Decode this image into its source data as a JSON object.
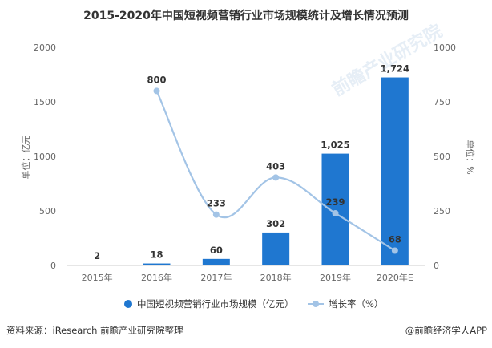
{
  "chart_data": {
    "type": "bar+line",
    "title": "2015-2020年中国短视频营销行业市场规模统计及增长情况预测",
    "categories": [
      "2015年",
      "2016年",
      "2017年",
      "2018年",
      "2019年",
      "2020年E"
    ],
    "series": [
      {
        "name": "中国短视频营销行业市场规模（亿元）",
        "type": "bar",
        "axis": "left",
        "color": "#1f77d0",
        "values": [
          2,
          18,
          60,
          302,
          1025,
          1724
        ],
        "labels": [
          "2",
          "18",
          "60",
          "302",
          "1,025",
          "1,724"
        ]
      },
      {
        "name": "增长率（%）",
        "type": "line",
        "axis": "right",
        "color": "#a3c4e6",
        "values": [
          null,
          800,
          233,
          403,
          239,
          68
        ],
        "labels": [
          "",
          "800",
          "233",
          "403",
          "239",
          "68"
        ]
      }
    ],
    "y_left": {
      "label": "单位：亿元",
      "range": [
        0,
        2000
      ],
      "ticks": [
        "0",
        "500",
        "1000",
        "1500",
        "2000"
      ]
    },
    "y_right": {
      "label": "单位：%",
      "range": [
        0,
        1000
      ],
      "ticks": [
        "0",
        "250",
        "500",
        "750",
        "1000"
      ]
    },
    "grid": false,
    "legend_position": "bottom"
  },
  "footer": {
    "source": "资料来源：iResearch 前瞻产业研究院整理",
    "brand": "@前瞻经济学人APP"
  },
  "watermark": "前瞻产业研究院"
}
